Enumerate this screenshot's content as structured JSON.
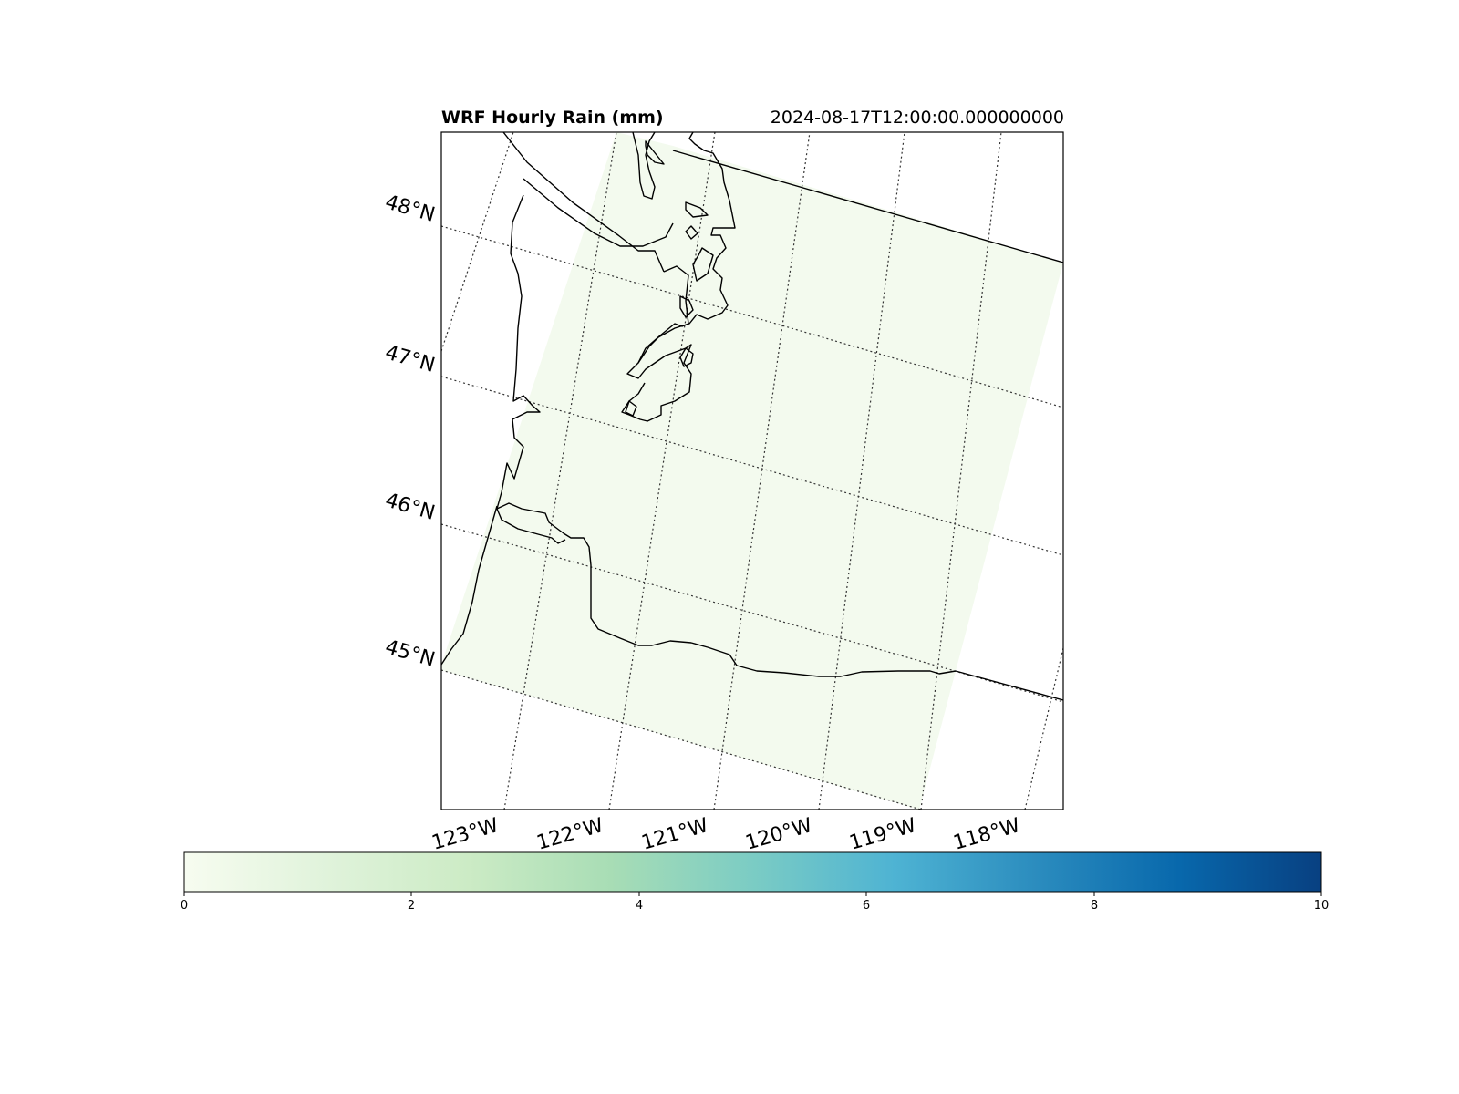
{
  "figure": {
    "title": "WRF Hourly Rain (mm)",
    "timestamp": "2024-08-17T12:00:00.000000000"
  },
  "map": {
    "field_color": "#f3faee",
    "coastline_color": "#000000",
    "gridline_color": "#333333",
    "lat_labels": [
      "48°N",
      "47°N",
      "46°N",
      "45°N"
    ],
    "lon_labels": [
      "123°W",
      "122°W",
      "121°W",
      "120°W",
      "119°W",
      "118°W"
    ]
  },
  "colorbar": {
    "colormap": "GnBu",
    "min": 0,
    "max": 10,
    "ticks": [
      "0",
      "2",
      "4",
      "6",
      "8",
      "10"
    ],
    "colors": [
      "#f7fcf0",
      "#e0f3db",
      "#ccebc5",
      "#a8ddb5",
      "#7bccc4",
      "#4eb3d3",
      "#2b8cbe",
      "#0868ac",
      "#084081"
    ]
  }
}
